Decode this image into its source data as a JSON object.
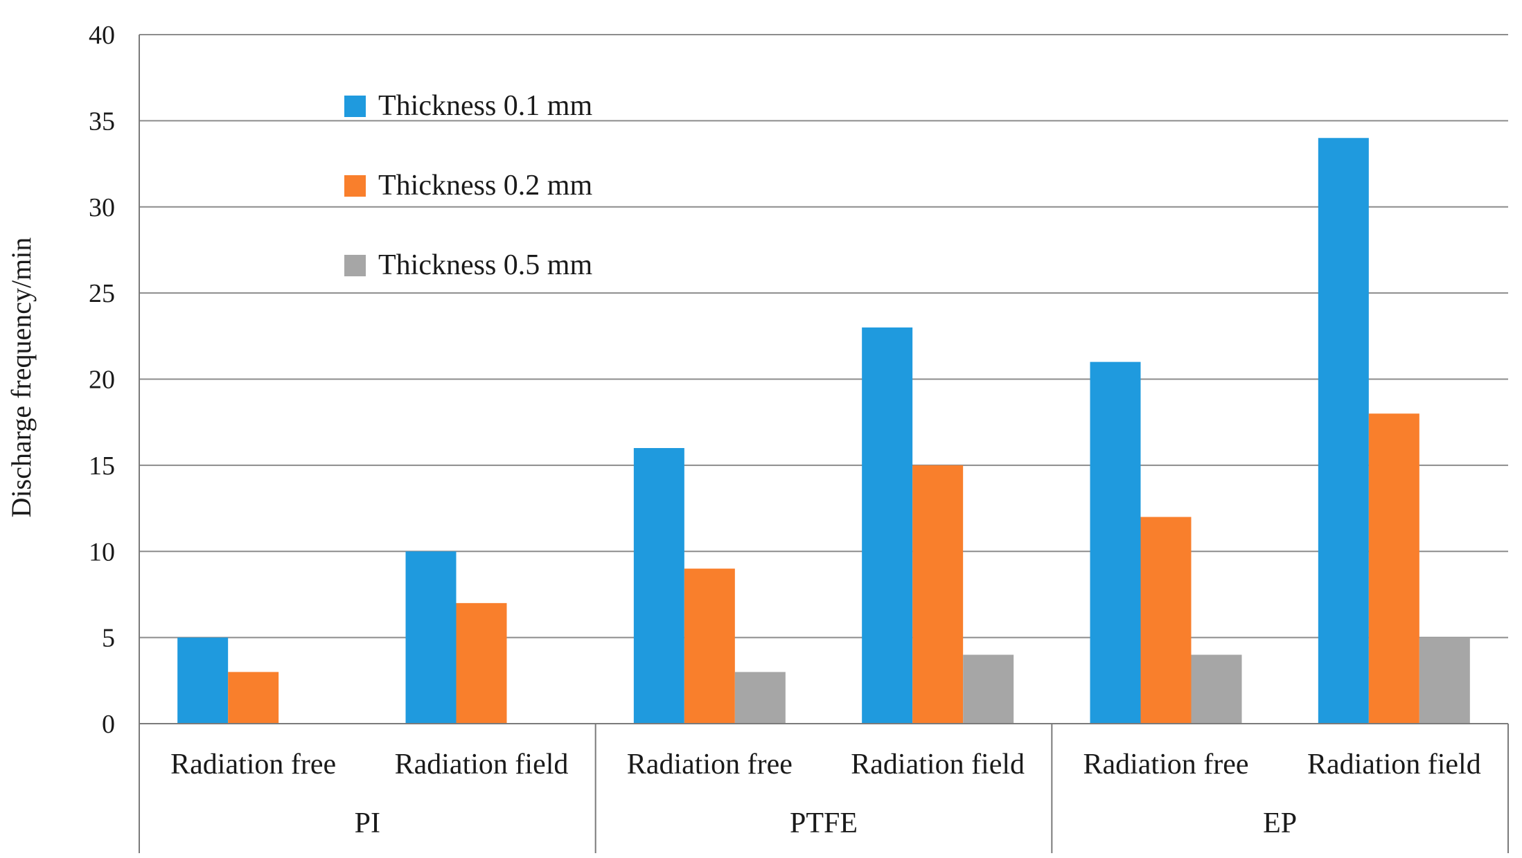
{
  "chart_data": {
    "type": "bar",
    "title": "",
    "ylabel": "Discharge frequency/min",
    "xlabel": "",
    "ylim": [
      0,
      40
    ],
    "yticks": [
      "0",
      "5",
      "10",
      "15",
      "20",
      "25",
      "30",
      "35",
      "40"
    ],
    "grid": true,
    "legend_position": "top-left",
    "categories": [
      "Radiation free",
      "Radiation field",
      "Radiation free",
      "Radiation field",
      "Radiation free",
      "Radiation field"
    ],
    "groups": [
      {
        "label": "PI",
        "span": 2
      },
      {
        "label": "PTFE",
        "span": 2
      },
      {
        "label": "EP",
        "span": 2
      }
    ],
    "series": [
      {
        "name": "Thickness 0.1 mm",
        "color": "#1f9ade",
        "values": [
          5,
          10,
          16,
          23,
          21,
          34
        ]
      },
      {
        "name": "Thickness 0.2 mm",
        "color": "#f97f2c",
        "values": [
          3,
          7,
          9,
          15,
          12,
          18
        ]
      },
      {
        "name": "Thickness 0.5 mm",
        "color": "#a6a6a6",
        "values": [
          0,
          0,
          3,
          4,
          4,
          5
        ]
      }
    ]
  }
}
